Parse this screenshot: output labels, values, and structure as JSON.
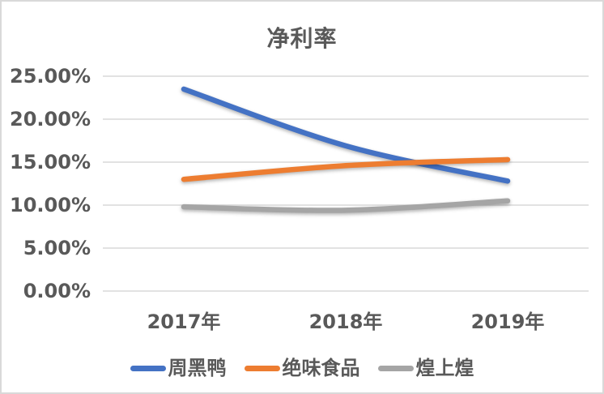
{
  "chart_data": {
    "type": "line",
    "title": "净利率",
    "categories": [
      "2017年",
      "2018年",
      "2019年"
    ],
    "series": [
      {
        "name": "周黑鸭",
        "color": "#4472C4",
        "values": [
          23.5,
          16.9,
          12.8
        ]
      },
      {
        "name": "绝味食品",
        "color": "#ED7D31",
        "values": [
          13.0,
          14.6,
          15.3
        ]
      },
      {
        "name": "煌上煌",
        "color": "#A5A5A5",
        "values": [
          9.8,
          9.4,
          10.5
        ]
      }
    ],
    "unit": "%",
    "ylim": [
      0,
      25
    ],
    "ytick_values": [
      0,
      5,
      10,
      15,
      20,
      25
    ],
    "ytick_labels": [
      "0.00%",
      "5.00%",
      "10.00%",
      "15.00%",
      "20.00%",
      "25.00%"
    ],
    "grid": true,
    "smooth_lines": true,
    "legend_position": "bottom",
    "colors": {
      "text": "#595959",
      "gridline": "#D9D9D9",
      "border": "#D9D9D9",
      "background": "#FFFFFF"
    }
  }
}
